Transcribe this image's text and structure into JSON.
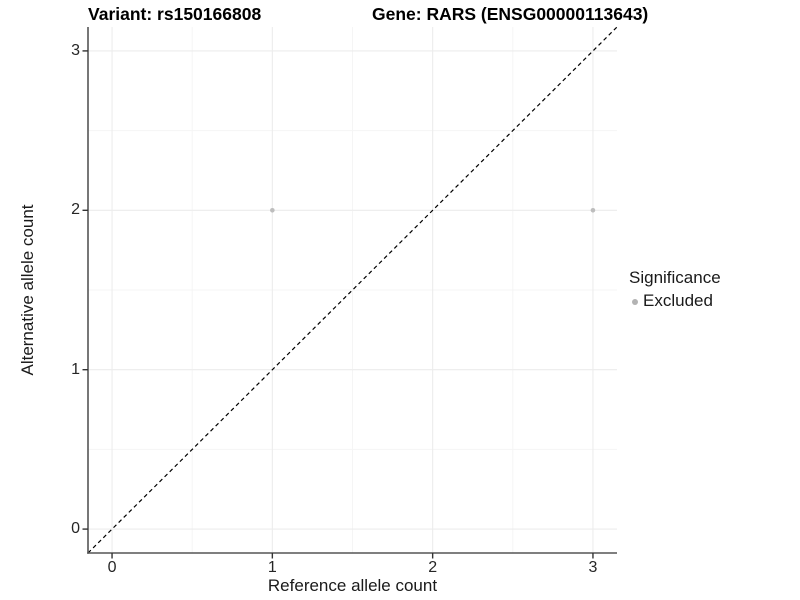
{
  "figure": {
    "title_left": "Variant: rs150166808",
    "title_right": "Gene: RARS (ENSG00000113643)"
  },
  "chart_data": {
    "type": "scatter",
    "title": "Variant: rs150166808 — Gene: RARS (ENSG00000113643)",
    "xlabel": "Reference allele count",
    "ylabel": "Alternative allele count",
    "xlim": [
      -0.15,
      3.15
    ],
    "ylim": [
      -0.15,
      3.15
    ],
    "x_major_ticks": [
      0,
      1,
      2,
      3
    ],
    "y_major_ticks": [
      0,
      1,
      2,
      3
    ],
    "x_minor_ticks": [
      0.5,
      1.5,
      2.5
    ],
    "y_minor_ticks": [
      0.5,
      1.5,
      2.5
    ],
    "grid": "on",
    "series": [
      {
        "name": "Excluded",
        "color": "#bdbdbd",
        "marker": "circle",
        "points": [
          {
            "x": 1,
            "y": 2
          },
          {
            "x": 3,
            "y": 2
          }
        ]
      }
    ],
    "reference_line": {
      "kind": "identity y=x",
      "style": "dashed",
      "color": "#000000"
    },
    "legend": {
      "title": "Significance",
      "position": "right-middle",
      "items": [
        {
          "label": "Excluded",
          "color": "#b3b3b3",
          "marker": "circle"
        }
      ]
    },
    "colors": {
      "axis_line": "#555555",
      "tick_mark": "#333333",
      "grid_major": "#ececec",
      "grid_minor": "#f5f5f5",
      "background": "#ffffff"
    }
  }
}
